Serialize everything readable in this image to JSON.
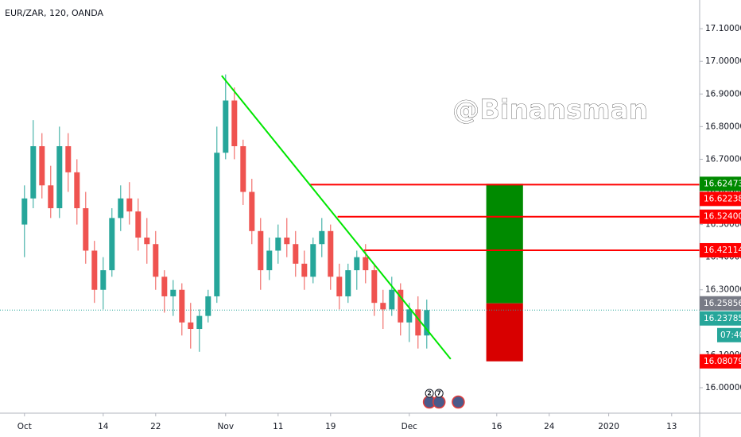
{
  "chart_data": {
    "type": "candlestick",
    "title": "EUR/ZAR, 120, OANDA",
    "watermark": "@Binansman",
    "up_color": "#26a69a",
    "down_color": "#ef5350",
    "x": [
      0,
      1,
      2,
      3,
      4,
      5,
      6,
      7,
      8,
      9,
      10,
      11,
      12,
      13,
      14,
      15,
      16,
      17,
      18,
      19,
      20,
      21,
      22,
      23,
      24,
      25,
      26,
      27,
      28,
      29,
      30,
      31,
      32,
      33,
      34,
      35,
      36,
      37,
      38,
      39,
      40,
      41,
      42,
      43,
      44,
      45,
      46
    ],
    "open": [
      16.5,
      16.58,
      16.74,
      16.62,
      16.55,
      16.74,
      16.66,
      16.55,
      16.42,
      16.3,
      16.36,
      16.52,
      16.58,
      16.54,
      16.46,
      16.44,
      16.34,
      16.28,
      16.3,
      16.2,
      16.18,
      16.22,
      16.28,
      16.72,
      16.88,
      16.74,
      16.6,
      16.48,
      16.36,
      16.42,
      16.46,
      16.44,
      16.38,
      16.34,
      16.44,
      16.48,
      16.34,
      16.28,
      16.36,
      16.4,
      16.36,
      16.26,
      16.24,
      16.3,
      16.2,
      16.24,
      16.16
    ],
    "high": [
      16.62,
      16.82,
      16.78,
      16.68,
      16.8,
      16.78,
      16.7,
      16.6,
      16.45,
      16.4,
      16.55,
      16.62,
      16.63,
      16.58,
      16.52,
      16.48,
      16.36,
      16.33,
      16.32,
      16.26,
      16.24,
      16.3,
      16.8,
      16.96,
      16.92,
      16.76,
      16.64,
      16.52,
      16.46,
      16.5,
      16.52,
      16.48,
      16.42,
      16.46,
      16.52,
      16.5,
      16.38,
      16.38,
      16.42,
      16.44,
      16.38,
      16.3,
      16.34,
      16.32,
      16.26,
      16.28,
      16.27
    ],
    "low": [
      16.4,
      16.55,
      16.58,
      16.52,
      16.52,
      16.6,
      16.5,
      16.38,
      16.26,
      16.24,
      16.34,
      16.48,
      16.5,
      16.42,
      16.38,
      16.3,
      16.23,
      16.22,
      16.16,
      16.12,
      16.11,
      16.2,
      16.26,
      16.7,
      16.7,
      16.56,
      16.44,
      16.3,
      16.33,
      16.38,
      16.4,
      16.34,
      16.3,
      16.32,
      16.4,
      16.3,
      16.24,
      16.26,
      16.3,
      16.32,
      16.22,
      16.18,
      16.22,
      16.16,
      16.14,
      16.12,
      16.12
    ],
    "close": [
      16.58,
      16.74,
      16.62,
      16.55,
      16.74,
      16.66,
      16.55,
      16.42,
      16.3,
      16.36,
      16.52,
      16.58,
      16.54,
      16.46,
      16.44,
      16.34,
      16.28,
      16.3,
      16.2,
      16.18,
      16.22,
      16.28,
      16.72,
      16.88,
      16.74,
      16.6,
      16.48,
      16.36,
      16.42,
      16.46,
      16.44,
      16.38,
      16.34,
      16.44,
      16.48,
      16.34,
      16.28,
      16.36,
      16.4,
      16.36,
      16.26,
      16.24,
      16.3,
      16.2,
      16.24,
      16.16,
      16.23785
    ],
    "xlim": [
      -2.8,
      77.2
    ],
    "xticks": [
      {
        "value": 0,
        "label": "Oct"
      },
      {
        "value": 9,
        "label": "14"
      },
      {
        "value": 15,
        "label": "22"
      },
      {
        "value": 23,
        "label": "Nov"
      },
      {
        "value": 29,
        "label": "11"
      },
      {
        "value": 35,
        "label": "19"
      },
      {
        "value": 44,
        "label": "Dec"
      },
      {
        "value": 54,
        "label": "16"
      },
      {
        "value": 60,
        "label": "24"
      },
      {
        "value": 66.8,
        "label": "2020"
      },
      {
        "value": 74,
        "label": "13"
      }
    ],
    "ylim": [
      15.922,
      17.188
    ],
    "yticks": [
      {
        "value": 16.0,
        "label": "16.00000"
      },
      {
        "value": 16.1,
        "label": "16.10000"
      },
      {
        "value": 16.2,
        "label": "16.20000"
      },
      {
        "value": 16.3,
        "label": "16.30000"
      },
      {
        "value": 16.4,
        "label": "16.40000"
      },
      {
        "value": 16.5,
        "label": "16.50000"
      },
      {
        "value": 16.6,
        "label": "16.60000"
      },
      {
        "value": 16.7,
        "label": "16.70000"
      },
      {
        "value": 16.8,
        "label": "16.80000"
      },
      {
        "value": 16.9,
        "label": "16.90000"
      },
      {
        "value": 17.0,
        "label": "17.00000"
      },
      {
        "value": 17.1,
        "label": "17.10000"
      }
    ],
    "trendline": {
      "x": [
        22.55,
        48.73
      ],
      "y": [
        16.956,
        16.088
      ],
      "color": "#00e600"
    },
    "levels": [
      {
        "value": 16.62238,
        "label": "16.62238",
        "start": 32.6
      },
      {
        "value": 16.524,
        "label": "16.52400",
        "start": 35.8
      },
      {
        "value": 16.42114,
        "label": "16.42114",
        "start": 38.8
      }
    ],
    "level_color": "#ff0000",
    "position": {
      "x": [
        52.8,
        57.0
      ],
      "target": {
        "value": 16.62473,
        "label": "16.62473"
      },
      "entry": {
        "value": 16.25856,
        "label": "16.25856"
      },
      "stop": {
        "value": 16.08079,
        "label": "16.08079"
      },
      "profit_color": "#008a00",
      "loss_color": "#d80000"
    },
    "last_price": {
      "value": 16.23785,
      "label": "16.23785",
      "countdown": "07:40",
      "color": "#26a69a"
    },
    "events": [
      {
        "x": 46.3,
        "label": "2"
      },
      {
        "x": 47.4,
        "label": "7"
      },
      {
        "x": 49.6
      }
    ]
  }
}
